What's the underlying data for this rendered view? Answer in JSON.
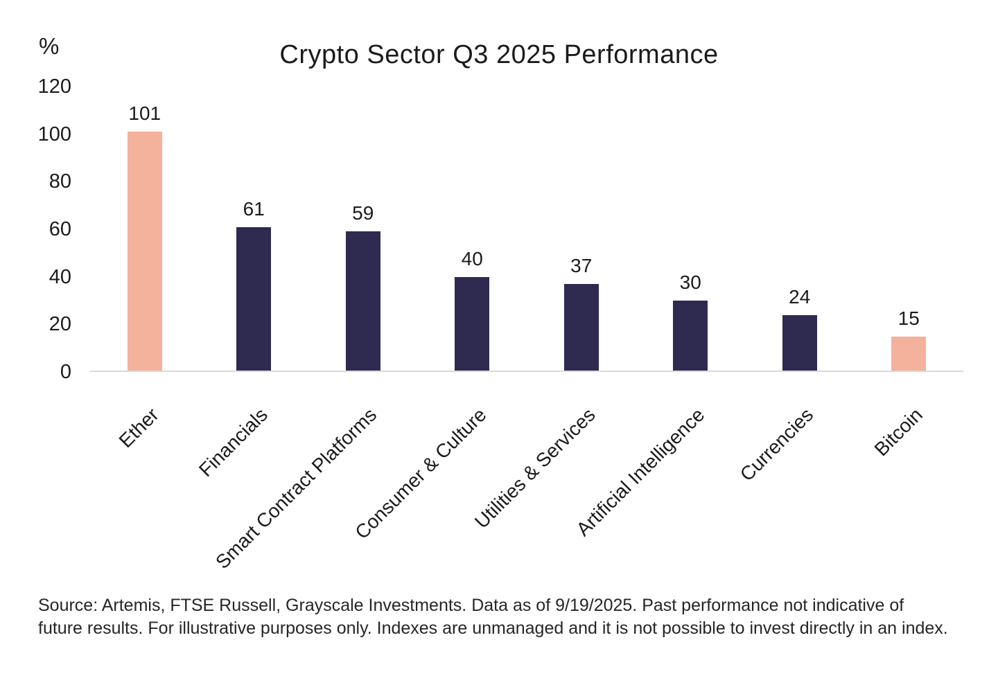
{
  "chart_data": {
    "type": "bar",
    "title": "Crypto Sector Q3 2025 Performance",
    "unit_label": "%",
    "xlabel": "",
    "ylabel": "%",
    "categories": [
      "Ether",
      "Financials",
      "Smart Contract Platforms",
      "Consumer & Culture",
      "Utilities & Services",
      "Artificial Intelligence",
      "Currencies",
      "Bitcoin"
    ],
    "values": [
      101,
      61,
      59,
      40,
      37,
      30,
      24,
      15
    ],
    "bar_colors": [
      "#F4B19B",
      "#2F2A4F",
      "#2F2A4F",
      "#2F2A4F",
      "#2F2A4F",
      "#2F2A4F",
      "#2F2A4F",
      "#F4B19B"
    ],
    "highlight_color": "#F4B19B",
    "default_color": "#2F2A4F",
    "ylim": [
      0,
      120
    ],
    "y_ticks": [
      0,
      20,
      40,
      60,
      80,
      100,
      120
    ],
    "grid": false,
    "legend_position": "none",
    "axis_line_color": "#D9D9D9"
  },
  "footer": {
    "text": "Source: Artemis, FTSE Russell, Grayscale Investments. Data as of 9/19/2025. Past performance not indicative of future results. For illustrative purposes only. Indexes are unmanaged and it is not possible to invest directly in an index."
  }
}
